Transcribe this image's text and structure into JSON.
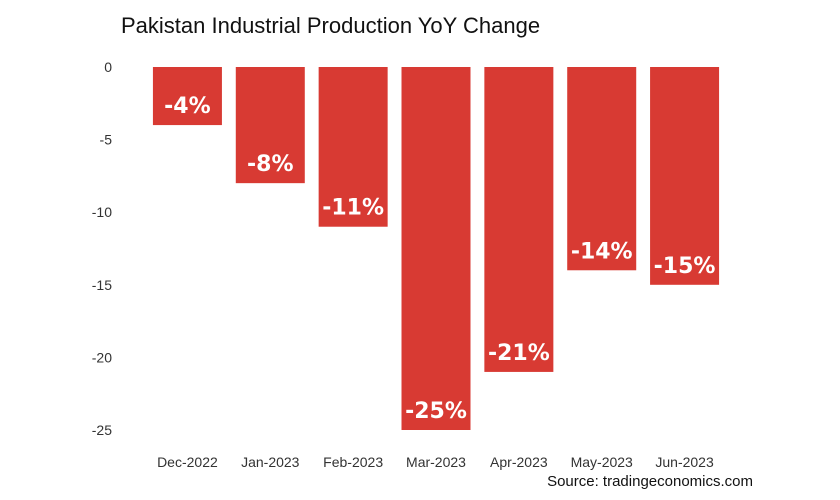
{
  "chart_data": {
    "type": "bar",
    "title": "Pakistan Industrial Production YoY Change",
    "categories": [
      "Dec-2022",
      "Jan-2023",
      "Feb-2023",
      "Mar-2023",
      "Apr-2023",
      "May-2023",
      "Jun-2023"
    ],
    "values": [
      -4,
      -8,
      -11,
      -25,
      -21,
      -14,
      -15
    ],
    "data_labels": [
      "-4%",
      "-8%",
      "-11%",
      "-25%",
      "-21%",
      "-14%",
      "-15%"
    ],
    "xlabel": "",
    "ylabel": "",
    "ylim": [
      -25,
      0
    ],
    "yticks": [
      0,
      -5,
      -10,
      -15,
      -20,
      -25
    ],
    "grid": false,
    "bar_color": "#d83a33",
    "source": "Source: tradingeconomics.com"
  }
}
